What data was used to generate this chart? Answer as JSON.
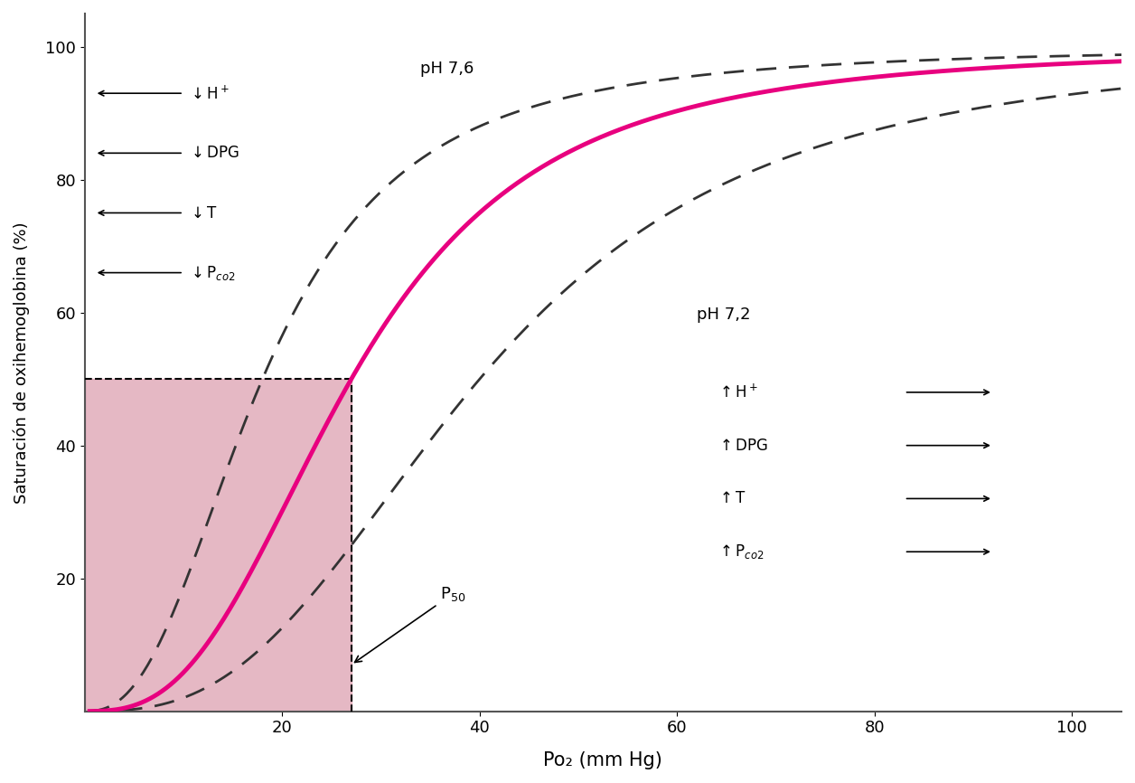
{
  "title": "",
  "xlabel": "Po₂ (mm Hg)",
  "ylabel": "Saturación de oxihemoglobina (%)",
  "xlim": [
    0,
    105
  ],
  "ylim": [
    0,
    105
  ],
  "xticks": [
    20,
    40,
    60,
    80,
    100
  ],
  "yticks": [
    20,
    40,
    60,
    80,
    100
  ],
  "bg_color": "#ffffff",
  "main_curve_color": "#e8007f",
  "dashed_color": "#333333",
  "shaded_color": "#dda0b0",
  "p50_x": 27,
  "p50_y": 50,
  "hill_n_main": 2.8,
  "hill_p50_main": 27,
  "hill_n_high": 2.5,
  "hill_p50_high": 18,
  "hill_n_low": 2.8,
  "hill_p50_low": 40
}
